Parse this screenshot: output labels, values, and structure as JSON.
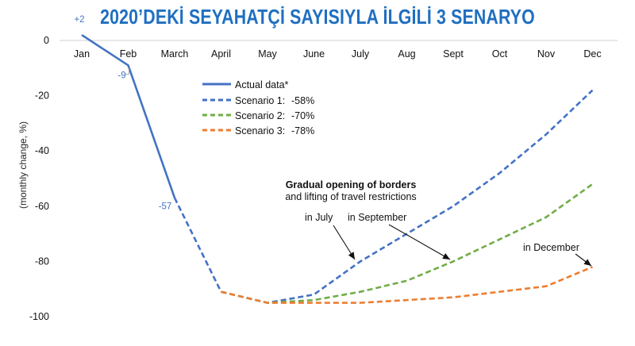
{
  "title": "2020’DEKİ SEYAHATÇİ SAYISIYLA İLGİLİ 3 SENARYO",
  "chart_data": {
    "type": "line",
    "title": "2020’DEKİ SEYAHATÇİ SAYISIYLA İLGİLİ 3 SENARYO",
    "ylabel": "(monthly change, %)",
    "xlabel": "",
    "categories": [
      "Jan",
      "Feb",
      "March",
      "April",
      "May",
      "June",
      "July",
      "Aug",
      "Sept",
      "Oct",
      "Nov",
      "Dec"
    ],
    "yticks": [
      0,
      -20,
      -40,
      -60,
      -80,
      -100
    ],
    "ylim": [
      -100,
      0
    ],
    "grid": false,
    "legend_position": "top-center",
    "colors": {
      "actual": "#4472c4",
      "s1": "#4472c4",
      "s2": "#70ad47",
      "s3": "#ed7d31",
      "title": "#1f6fc1"
    },
    "series": [
      {
        "name": "Actual data*",
        "style": "solid",
        "values": [
          2,
          -9,
          -57,
          null,
          null,
          null,
          null,
          null,
          null,
          null,
          null,
          null
        ]
      },
      {
        "name": "Scenario 1:",
        "change": "-58%",
        "style": "dashed",
        "values": [
          null,
          null,
          -57,
          -91,
          -95,
          -92,
          -80,
          -70,
          -60,
          -48,
          -34,
          -18
        ]
      },
      {
        "name": "Scenario 2:",
        "change": "-70%",
        "style": "dashed",
        "values": [
          null,
          null,
          null,
          -91,
          -95,
          -94,
          -91,
          -87,
          -80,
          -72,
          -64,
          -52
        ]
      },
      {
        "name": "Scenario 3:",
        "change": "-78%",
        "style": "dashed",
        "values": [
          null,
          null,
          null,
          -91,
          -95,
          -95,
          -95,
          -94,
          -93,
          -91,
          -89,
          -82
        ]
      }
    ],
    "data_labels": [
      "+2",
      "-9",
      "-57"
    ],
    "annotations": {
      "heading": "Gradual opening of borders",
      "subheading": "and lifting of travel restrictions",
      "july": "in July",
      "september": "in September",
      "december": "in December"
    }
  }
}
